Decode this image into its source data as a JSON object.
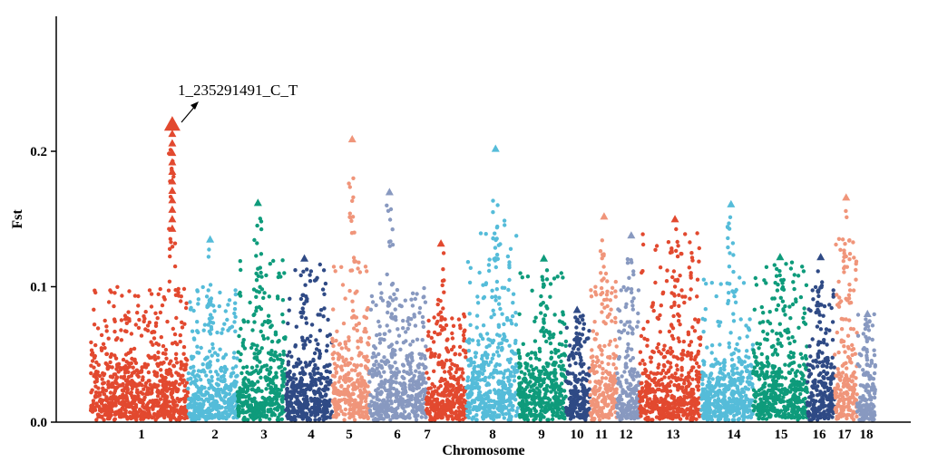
{
  "chart_data": {
    "type": "scatter",
    "subtype": "manhattan",
    "title": "",
    "xlabel": "Chromosome",
    "ylabel": "Fst",
    "ylim": [
      0,
      0.3
    ],
    "yticks": [
      0.0,
      0.1,
      0.2
    ],
    "ytick_labels": [
      "0.0",
      "0.1",
      "0.2"
    ],
    "grid": false,
    "legend": "none",
    "colors": [
      "#e2492f",
      "#55bcd9",
      "#0e9b7b",
      "#2f4a85",
      "#f0957a",
      "#8899c0"
    ],
    "chromosomes": [
      {
        "label": "1",
        "color": "#e2492f",
        "max_fst": 0.22
      },
      {
        "label": "2",
        "color": "#55bcd9",
        "max_fst": 0.135
      },
      {
        "label": "3",
        "color": "#0e9b7b",
        "max_fst": 0.162
      },
      {
        "label": "4",
        "color": "#2f4a85",
        "max_fst": 0.121
      },
      {
        "label": "5",
        "color": "#f0957a",
        "max_fst": 0.209
      },
      {
        "label": "6",
        "color": "#8899c0",
        "max_fst": 0.17
      },
      {
        "label": "7",
        "color": "#e2492f",
        "max_fst": 0.132
      },
      {
        "label": "8",
        "color": "#55bcd9",
        "max_fst": 0.202
      },
      {
        "label": "9",
        "color": "#0e9b7b",
        "max_fst": 0.121
      },
      {
        "label": "10",
        "color": "#2f4a85",
        "max_fst": 0.083
      },
      {
        "label": "11",
        "color": "#f0957a",
        "max_fst": 0.152
      },
      {
        "label": "12",
        "color": "#8899c0",
        "max_fst": 0.138
      },
      {
        "label": "13",
        "color": "#e2492f",
        "max_fst": 0.15
      },
      {
        "label": "14",
        "color": "#55bcd9",
        "max_fst": 0.161
      },
      {
        "label": "15",
        "color": "#0e9b7b",
        "max_fst": 0.122
      },
      {
        "label": "16",
        "color": "#2f4a85",
        "max_fst": 0.122
      },
      {
        "label": "17",
        "color": "#f0957a",
        "max_fst": 0.166
      },
      {
        "label": "18",
        "color": "#8899c0",
        "max_fst": 0.08
      }
    ],
    "annotations": [
      {
        "text": "1_235291491_C_T",
        "chromosome": "1",
        "fst": 0.22
      }
    ]
  }
}
